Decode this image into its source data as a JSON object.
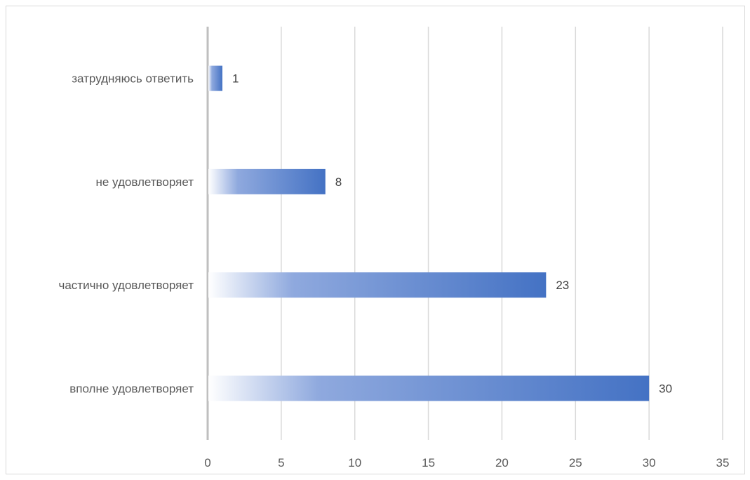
{
  "chart_data": {
    "type": "bar",
    "orientation": "horizontal",
    "categories": [
      "затрудняюсь ответить",
      "не удовлетворяет",
      "частично удовлетворяет",
      "вполне удовлетворяет"
    ],
    "values": [
      1,
      8,
      23,
      30
    ],
    "data_labels": [
      "1",
      "8",
      "23",
      "30"
    ],
    "xticks": [
      "0",
      "5",
      "10",
      "15",
      "20",
      "25",
      "30",
      "35"
    ],
    "xlim": [
      0,
      35
    ],
    "grid": true,
    "legend": "none",
    "bar_color": "#4472c4",
    "bar_fill": "gradient from white to blue"
  }
}
